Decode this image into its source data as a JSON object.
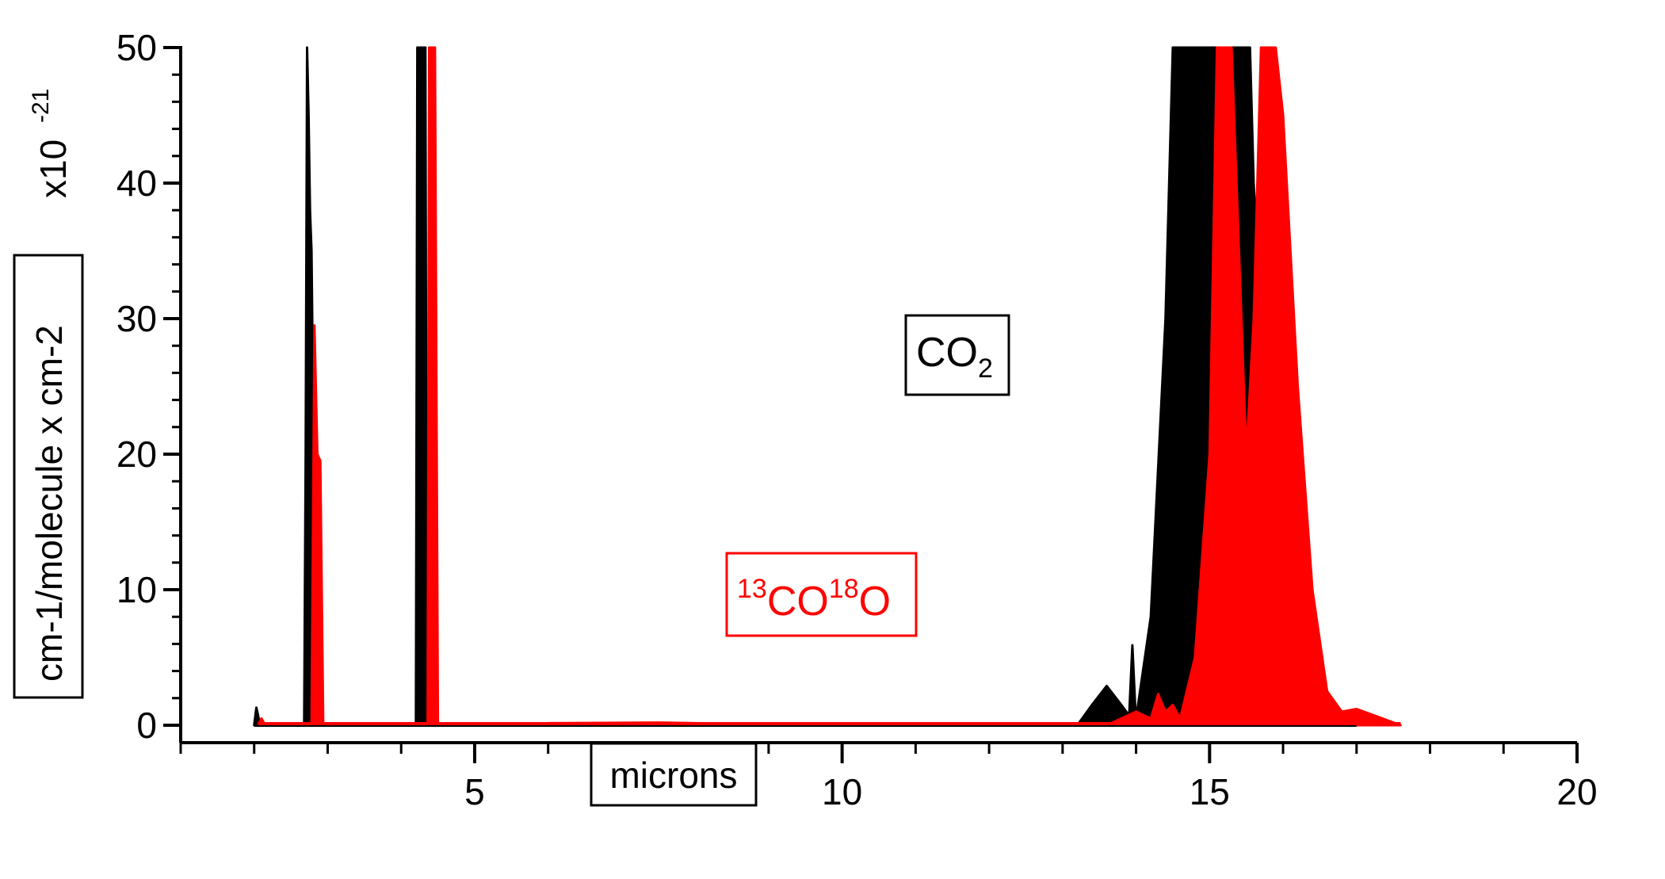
{
  "chart_data": {
    "type": "line",
    "title": "",
    "xlabel": "microns",
    "ylabel": "cm-1/molecule x cm-2",
    "y_multiplier": {
      "prefix": "x10",
      "exponent": "-21"
    },
    "xlim": [
      1,
      20
    ],
    "ylim": [
      0,
      50
    ],
    "x_ticks": [
      5,
      10,
      15,
      20
    ],
    "y_ticks": [
      0,
      10,
      20,
      30,
      40,
      50
    ],
    "grid": false,
    "legend": "inline labels",
    "series": [
      {
        "label_parts": [
          {
            "text": "CO",
            "baseline": "normal"
          },
          {
            "text": "2",
            "baseline": "sub"
          }
        ],
        "color": "#000000",
        "bands": [
          {
            "x": [
              2.0,
              2.03,
              2.05,
              2.08
            ],
            "y": [
              0,
              1.3,
              0.8,
              0
            ]
          },
          {
            "x": [
              2.68,
              2.7,
              2.72,
              2.74,
              2.76,
              2.78,
              2.8,
              2.82
            ],
            "y": [
              0,
              20,
              50,
              45,
              38,
              35,
              25,
              0
            ]
          },
          {
            "x": [
              4.2,
              4.22,
              4.25,
              4.3,
              4.33,
              4.35
            ],
            "y": [
              0,
              50,
              50,
              50,
              50,
              0
            ]
          },
          {
            "x": [
              13.2,
              13.4,
              13.6,
              13.8,
              14.0
            ],
            "y": [
              0,
              1.5,
              2.9,
              1.5,
              0
            ]
          },
          {
            "x": [
              13.9,
              13.95,
              14.0
            ],
            "y": [
              0,
              5.9,
              0
            ]
          },
          {
            "x": [
              14.0,
              14.2,
              14.4,
              14.5,
              14.6,
              14.8,
              15.0,
              15.1,
              15.2,
              15.3,
              15.4,
              15.5,
              15.55,
              15.6,
              15.7,
              15.8,
              16.0,
              16.2,
              16.4,
              16.6,
              16.8,
              17.0
            ],
            "y": [
              0.5,
              8,
              30,
              50,
              50,
              50,
              50,
              50,
              3.4,
              50,
              50,
              50,
              50,
              40,
              30,
              20,
              10,
              5,
              2.5,
              2.0,
              1.0,
              0
            ]
          }
        ]
      },
      {
        "label_parts": [
          {
            "text": "13",
            "baseline": "super"
          },
          {
            "text": "CO",
            "baseline": "normal"
          },
          {
            "text": "18",
            "baseline": "super"
          },
          {
            "text": "O",
            "baseline": "normal"
          }
        ],
        "color": "#ff0000",
        "bands": [
          {
            "x": [
              2.05,
              2.1,
              2.15
            ],
            "y": [
              0,
              0.5,
              0
            ]
          },
          {
            "x": [
              2.78,
              2.82,
              2.86,
              2.9,
              2.94
            ],
            "y": [
              0,
              29.5,
              20,
              19.5,
              0
            ]
          },
          {
            "x": [
              4.36,
              4.38,
              4.42,
              4.46,
              4.5
            ],
            "y": [
              0,
              50,
              50,
              50,
              0
            ]
          },
          {
            "x": [
              6.0,
              7.5,
              8.0,
              9.0
            ],
            "y": [
              0.15,
              0.2,
              0.15,
              0.05
            ]
          },
          {
            "x": [
              13.6,
              14.0,
              14.2,
              14.3,
              14.4,
              14.5,
              14.6,
              14.8,
              15.0,
              15.1,
              15.2,
              15.3,
              15.4,
              15.5,
              15.6,
              15.7,
              15.8,
              15.9,
              16.0,
              16.2,
              16.4,
              16.6,
              16.8,
              17.0,
              17.3,
              17.6
            ],
            "y": [
              0,
              1.0,
              0.5,
              2.3,
              1.0,
              1.5,
              0.5,
              5,
              20,
              50,
              50,
              50,
              35,
              20,
              30,
              50,
              50,
              50,
              45,
              25,
              10,
              2.5,
              1.0,
              1.2,
              0.6,
              0
            ]
          }
        ]
      }
    ]
  }
}
